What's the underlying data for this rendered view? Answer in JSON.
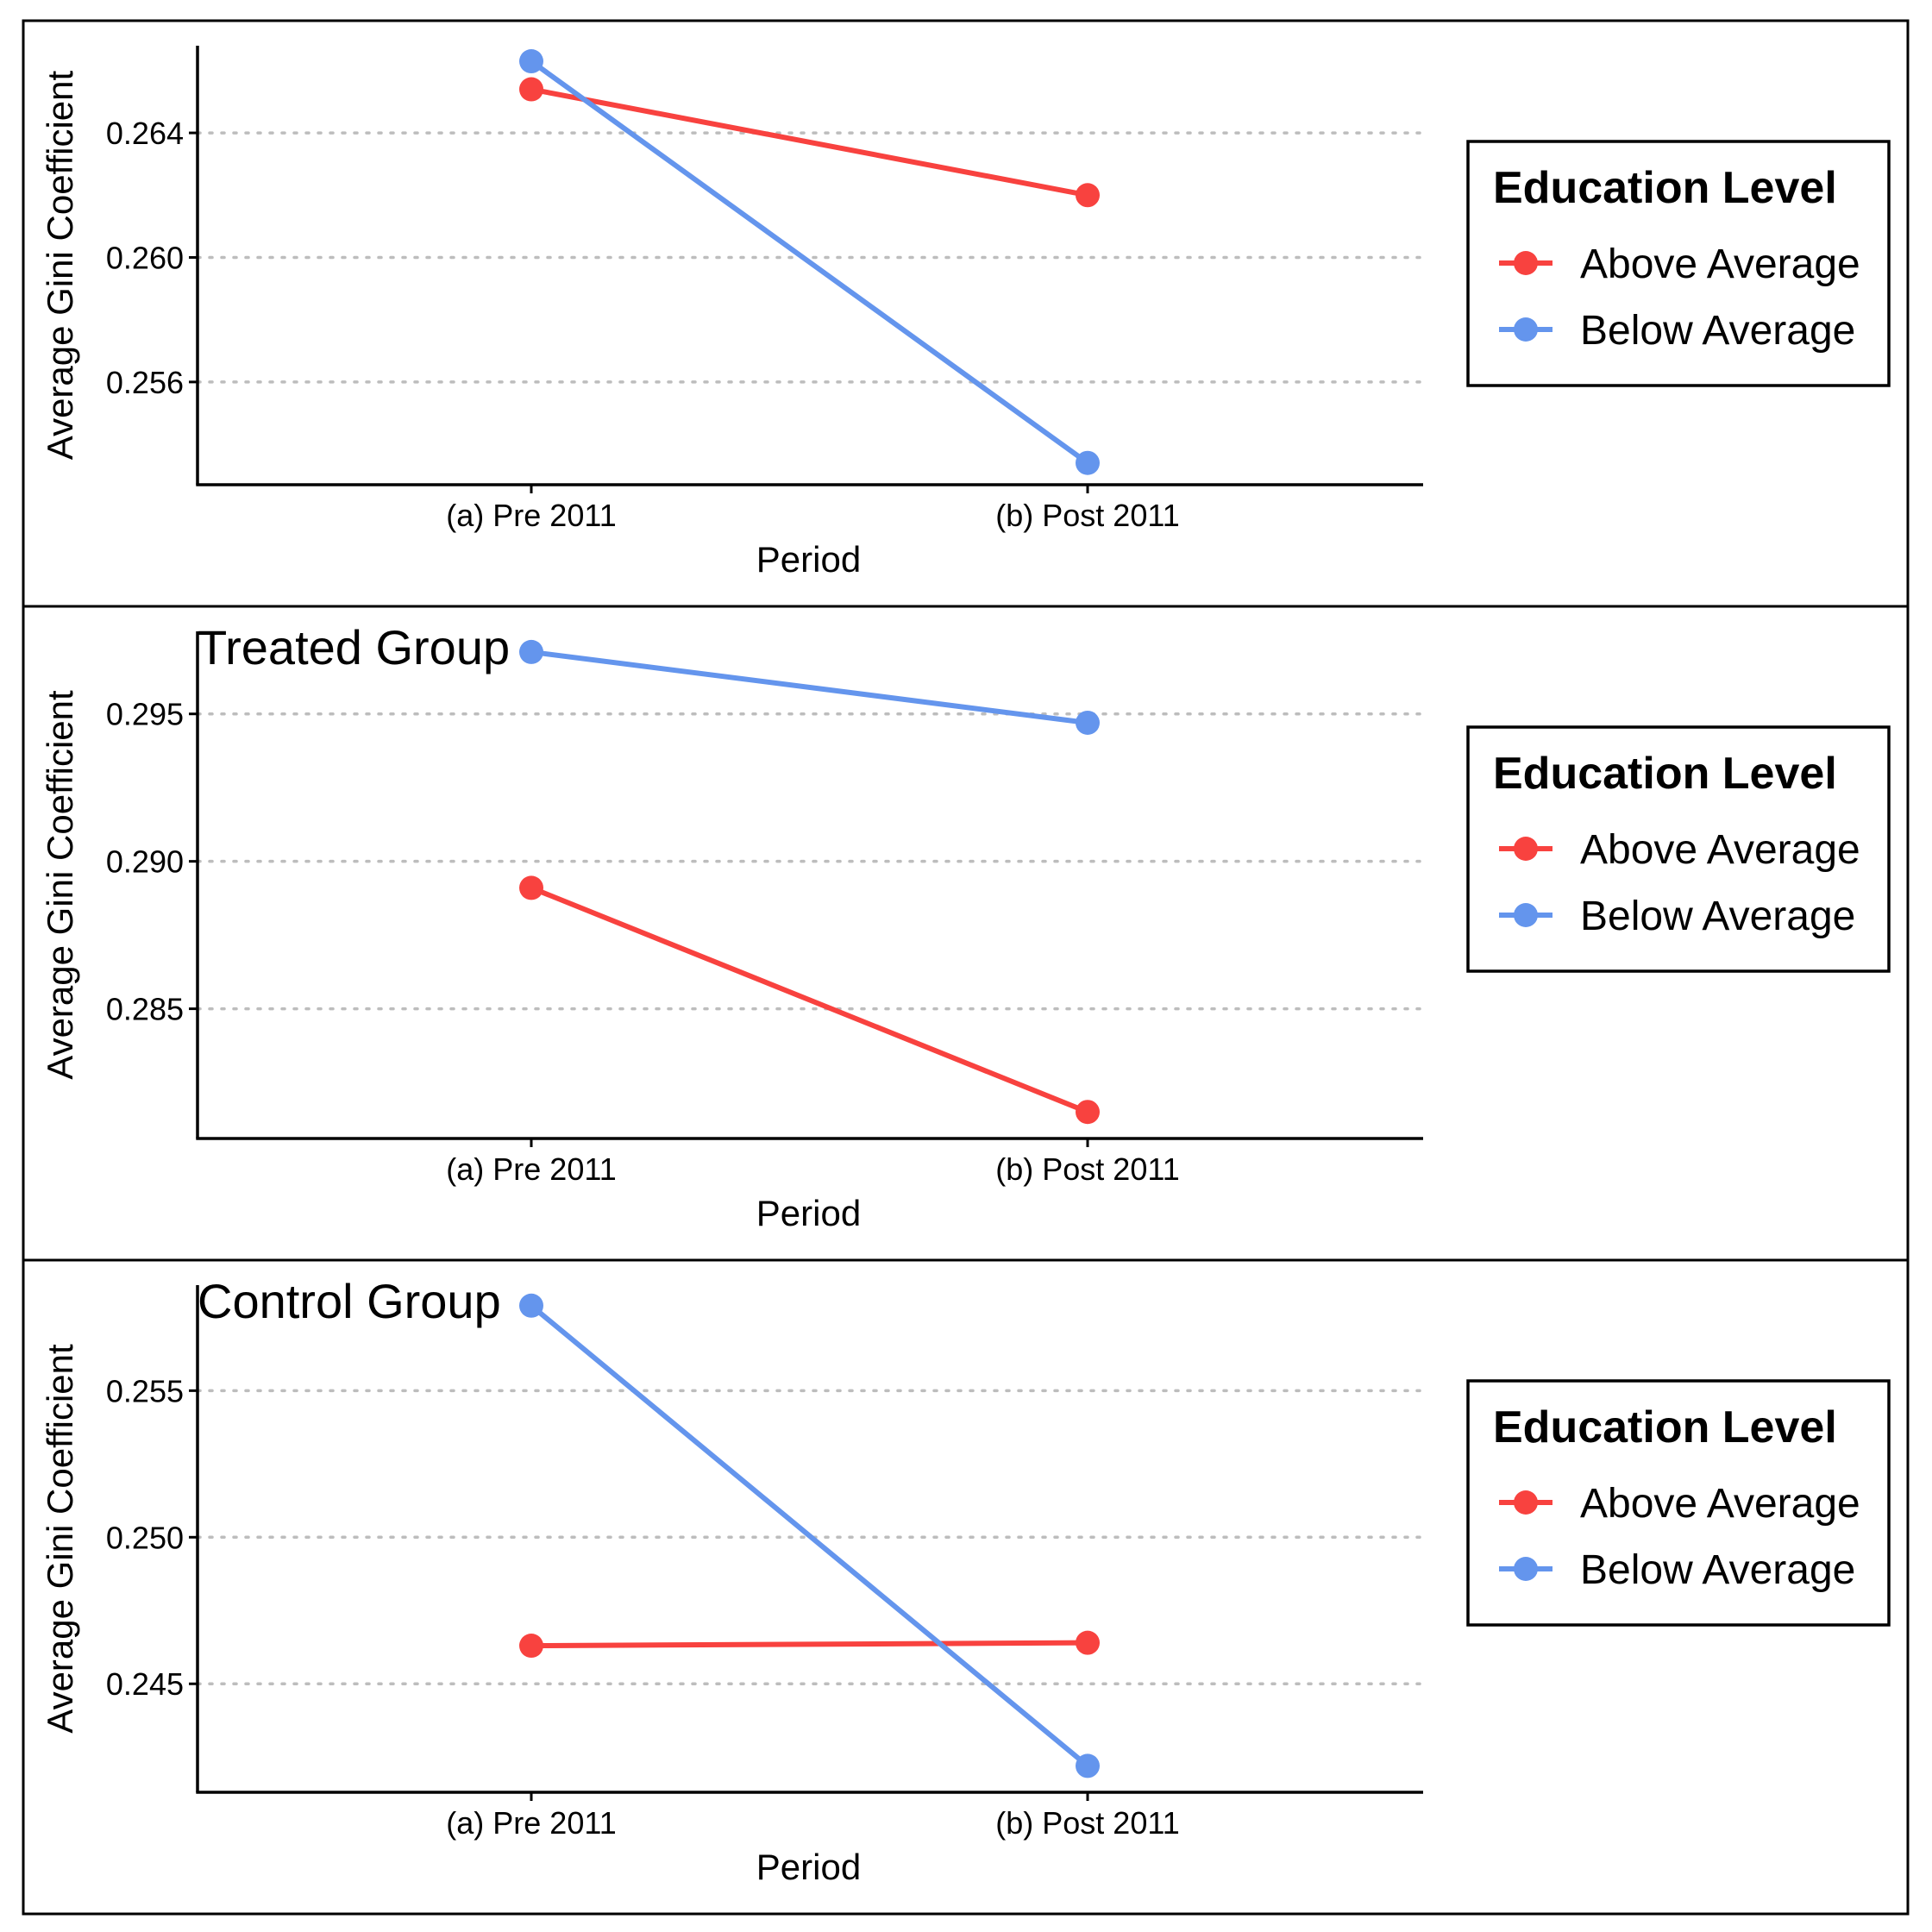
{
  "colors": {
    "Above Average": "#F8423F",
    "Below Average": "#6495ED"
  },
  "chart_data": [
    {
      "type": "line",
      "title": "",
      "xlabel": "Period",
      "ylabel": "Average Gini Coefficient",
      "categories": [
        "(a) Pre 2011",
        "(b) Post 2011"
      ],
      "ylim": [
        0.2527,
        0.2668
      ],
      "yticks": [
        0.256,
        0.26,
        0.264
      ],
      "ytick_labels": [
        "0.256",
        "0.260",
        "0.264"
      ],
      "grid": "horizontal dotted",
      "legend": {
        "title": "Education Level",
        "position": "right",
        "entries": [
          "Above Average",
          "Below Average"
        ]
      },
      "series": [
        {
          "name": "Above Average",
          "values": [
            0.2654,
            0.262
          ]
        },
        {
          "name": "Below Average",
          "values": [
            0.2663,
            0.2534
          ]
        }
      ]
    },
    {
      "type": "line",
      "title": "Treated Group",
      "xlabel": "Period",
      "ylabel": "Average Gini Coefficient",
      "categories": [
        "(a) Pre 2011",
        "(b) Post 2011"
      ],
      "ylim": [
        0.2806,
        0.2978
      ],
      "yticks": [
        0.285,
        0.29,
        0.295
      ],
      "ytick_labels": [
        "0.285",
        "0.290",
        "0.295"
      ],
      "grid": "horizontal dotted",
      "legend": {
        "title": "Education Level",
        "position": "right",
        "entries": [
          "Above Average",
          "Below Average"
        ]
      },
      "series": [
        {
          "name": "Above Average",
          "values": [
            0.2891,
            0.2815
          ]
        },
        {
          "name": "Below Average",
          "values": [
            0.2971,
            0.2947
          ]
        }
      ]
    },
    {
      "type": "line",
      "title": "Control Group",
      "xlabel": "Period",
      "ylabel": "Average Gini Coefficient",
      "categories": [
        "(a) Pre 2011",
        "(b) Post 2011"
      ],
      "ylim": [
        0.2413,
        0.2586
      ],
      "yticks": [
        0.245,
        0.25,
        0.255
      ],
      "ytick_labels": [
        "0.245",
        "0.250",
        "0.255"
      ],
      "grid": "horizontal dotted",
      "legend": {
        "title": "Education Level",
        "position": "right",
        "entries": [
          "Above Average",
          "Below Average"
        ]
      },
      "series": [
        {
          "name": "Above Average",
          "values": [
            0.2463,
            0.2464
          ]
        },
        {
          "name": "Below Average",
          "values": [
            0.2579,
            0.2422
          ]
        }
      ]
    }
  ]
}
